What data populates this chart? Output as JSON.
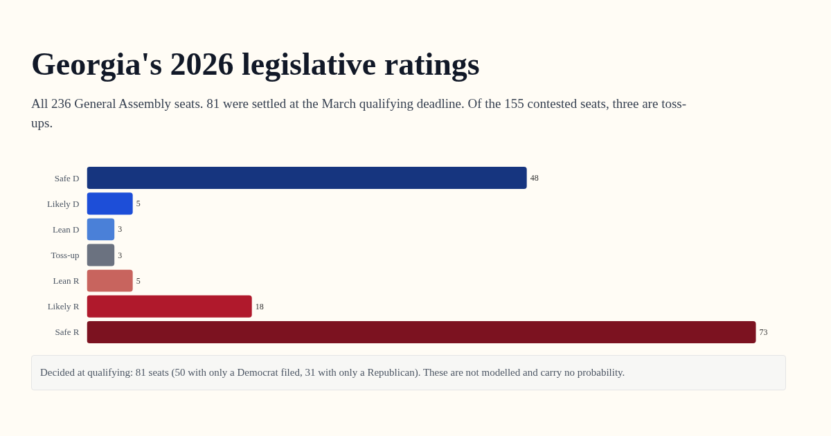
{
  "chart_data": {
    "type": "bar",
    "orientation": "horizontal",
    "title": "Georgia's 2026 legislative ratings",
    "subtitle": "All 236 General Assembly seats. 81 were settled at the March qualifying deadline. Of the 155 contested seats, three are toss-ups.",
    "categories": [
      "Safe D",
      "Likely D",
      "Lean D",
      "Toss-up",
      "Lean R",
      "Likely R",
      "Safe R"
    ],
    "values": [
      48,
      5,
      3,
      3,
      5,
      18,
      73
    ],
    "colors": [
      "#16357f",
      "#1d4ed8",
      "#4a80d8",
      "#6b7280",
      "#c8645e",
      "#b0192c",
      "#7c1220"
    ],
    "data_labels": true,
    "tick_labels": "y",
    "grid": false,
    "annotations": [
      "Decided at qualifying: 81 seats (50 with only a Democrat filed, 31 with only a Republican). These are not modelled and carry no probability."
    ]
  }
}
